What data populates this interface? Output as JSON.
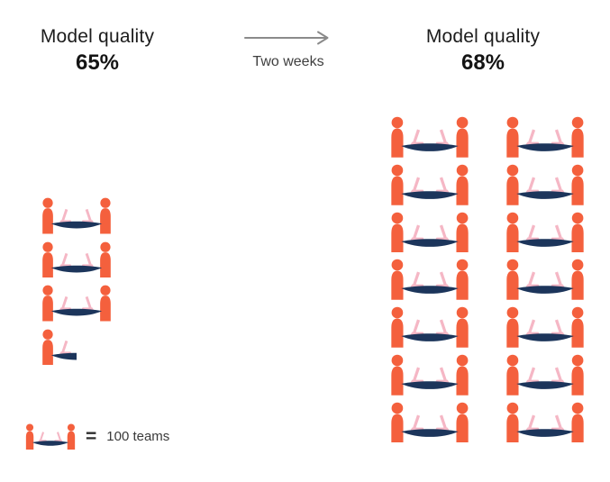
{
  "colors": {
    "person_orange": "#f4603d",
    "laptop_pink": "#f5b7c5",
    "table_navy": "#1c355b",
    "arrow_gray": "#8a8a8a"
  },
  "transition": {
    "label": "Two weeks"
  },
  "legend": {
    "symbol": "=",
    "label": "100 teams"
  },
  "chart_data": {
    "type": "pictogram",
    "unit_icon": "two-people-at-table-with-laptops",
    "teams_per_icon": 100,
    "transition_label": "Two weeks",
    "legend_label": "100 teams",
    "groups": [
      {
        "label": "Model quality",
        "value": "65%",
        "value_pct": 65,
        "icons_full": 3,
        "icon_partial_fraction": 0.5,
        "icons_total": 3.5,
        "teams_represented": 350,
        "columns": 1
      },
      {
        "label": "Model quality",
        "value": "68%",
        "value_pct": 68,
        "icons_full": 14,
        "icon_partial_fraction": 0,
        "icons_total": 14,
        "teams_represented": 1400,
        "columns": 2
      }
    ]
  }
}
